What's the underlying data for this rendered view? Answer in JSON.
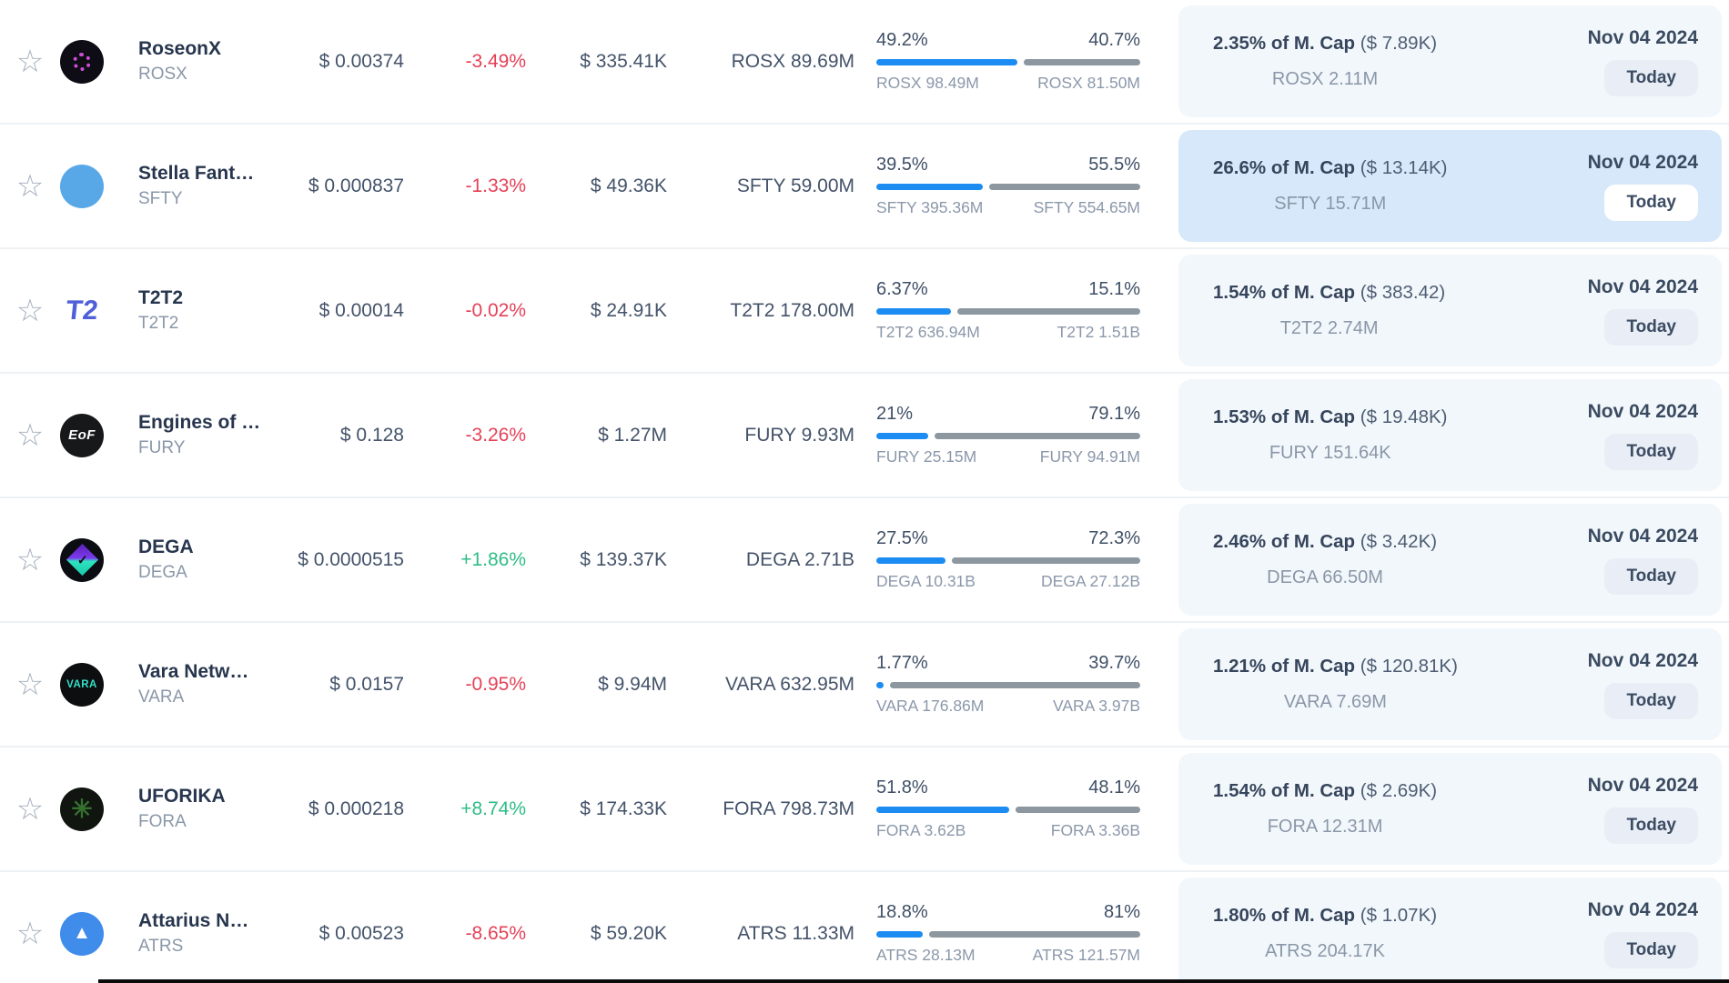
{
  "table": {
    "date_column": {
      "date": "Nov 04 2024",
      "badge": "Today"
    },
    "colors": {
      "bar_blue": "#1c8cf3",
      "bar_gray": "#8d97a0",
      "change_up": "#2ebd85",
      "change_down": "#e54157",
      "panel_bg": "#f2f7fb",
      "panel_highlight_bg": "#d6e8fa"
    }
  },
  "rows": [
    {
      "name": "RoseonX",
      "symbol": "ROSX",
      "logo": {
        "kind": "rosx",
        "bg": "#0e0c15",
        "color": "#cf4fd8",
        "text": ""
      },
      "price": "$ 0.00374",
      "change": "-3.49%",
      "change_dir": "down",
      "volume": "$ 335.41K",
      "supply": "ROSX 89.69M",
      "bar": {
        "left_pct": "49.2%",
        "right_pct": "40.7%",
        "left_value": 49.2,
        "right_value": 40.7,
        "left_label": "ROSX 98.49M",
        "right_label": "ROSX 81.50M"
      },
      "unlock": {
        "mcap_bold": "2.35% of M. Cap",
        "mcap_paren": "($ 7.89K)",
        "amount": "ROSX 2.11M"
      },
      "date": "Nov 04 2024",
      "badge": "Today",
      "highlighted": false
    },
    {
      "name": "Stella Fant…",
      "symbol": "SFTY",
      "logo": {
        "kind": "sfty",
        "bg": "#58a8e8",
        "color": "#e6ded2",
        "text": ""
      },
      "price": "$ 0.000837",
      "change": "-1.33%",
      "change_dir": "down",
      "volume": "$ 49.36K",
      "supply": "SFTY 59.00M",
      "bar": {
        "left_pct": "39.5%",
        "right_pct": "55.5%",
        "left_value": 39.5,
        "right_value": 55.5,
        "left_label": "SFTY 395.36M",
        "right_label": "SFTY 554.65M"
      },
      "unlock": {
        "mcap_bold": "26.6% of M. Cap",
        "mcap_paren": "($ 13.14K)",
        "amount": "SFTY 15.71M"
      },
      "date": "Nov 04 2024",
      "badge": "Today",
      "highlighted": true
    },
    {
      "name": "T2T2",
      "symbol": "T2T2",
      "logo": {
        "kind": "t2t2",
        "bg": "transparent",
        "color": "#4f5ed9",
        "text": "T2"
      },
      "price": "$ 0.00014",
      "change": "-0.02%",
      "change_dir": "down",
      "volume": "$ 24.91K",
      "supply": "T2T2 178.00M",
      "bar": {
        "left_pct": "6.37%",
        "right_pct": "15.1%",
        "left_value": 6.37,
        "right_value": 15.1,
        "left_label": "T2T2 636.94M",
        "right_label": "T2T2 1.51B"
      },
      "unlock": {
        "mcap_bold": "1.54% of M. Cap",
        "mcap_paren": "($ 383.42)",
        "amount": "T2T2 2.74M"
      },
      "date": "Nov 04 2024",
      "badge": "Today",
      "highlighted": false
    },
    {
      "name": "Engines of …",
      "symbol": "FURY",
      "logo": {
        "kind": "fury",
        "bg": "#17181a",
        "color": "#ffffff",
        "text": "EoF"
      },
      "price": "$ 0.128",
      "change": "-3.26%",
      "change_dir": "down",
      "volume": "$ 1.27M",
      "supply": "FURY 9.93M",
      "bar": {
        "left_pct": "21%",
        "right_pct": "79.1%",
        "left_value": 21,
        "right_value": 79.1,
        "left_label": "FURY 25.15M",
        "right_label": "FURY 94.91M"
      },
      "unlock": {
        "mcap_bold": "1.53% of M. Cap",
        "mcap_paren": "($ 19.48K)",
        "amount": "FURY 151.64K"
      },
      "date": "Nov 04 2024",
      "badge": "Today",
      "highlighted": false
    },
    {
      "name": "DEGA",
      "symbol": "DEGA",
      "logo": {
        "kind": "dega",
        "bg": "#0b0d12",
        "color": "#2fe3c0",
        "text": "✓"
      },
      "price": "$ 0.0000515",
      "change": "+1.86%",
      "change_dir": "up",
      "volume": "$ 139.37K",
      "supply": "DEGA 2.71B",
      "bar": {
        "left_pct": "27.5%",
        "right_pct": "72.3%",
        "left_value": 27.5,
        "right_value": 72.3,
        "left_label": "DEGA 10.31B",
        "right_label": "DEGA 27.12B"
      },
      "unlock": {
        "mcap_bold": "2.46% of M. Cap",
        "mcap_paren": "($ 3.42K)",
        "amount": "DEGA 66.50M"
      },
      "date": "Nov 04 2024",
      "badge": "Today",
      "highlighted": false
    },
    {
      "name": "Vara Netw…",
      "symbol": "VARA",
      "logo": {
        "kind": "vara",
        "bg": "#0c0e10",
        "color": "#35e0c8",
        "text": "VARA"
      },
      "price": "$ 0.0157",
      "change": "-0.95%",
      "change_dir": "down",
      "volume": "$ 9.94M",
      "supply": "VARA 632.95M",
      "bar": {
        "left_pct": "1.77%",
        "right_pct": "39.7%",
        "left_value": 1.77,
        "right_value": 39.7,
        "left_label": "VARA 176.86M",
        "right_label": "VARA 3.97B"
      },
      "unlock": {
        "mcap_bold": "1.21% of M. Cap",
        "mcap_paren": "($ 120.81K)",
        "amount": "VARA 7.69M"
      },
      "date": "Nov 04 2024",
      "badge": "Today",
      "highlighted": false
    },
    {
      "name": "UFORIKA",
      "symbol": "FORA",
      "logo": {
        "kind": "fora",
        "bg": "#101510",
        "color": "#35702f",
        "text": "✳"
      },
      "price": "$ 0.000218",
      "change": "+8.74%",
      "change_dir": "up",
      "volume": "$ 174.33K",
      "supply": "FORA 798.73M",
      "bar": {
        "left_pct": "51.8%",
        "right_pct": "48.1%",
        "left_value": 51.8,
        "right_value": 48.1,
        "left_label": "FORA 3.62B",
        "right_label": "FORA 3.36B"
      },
      "unlock": {
        "mcap_bold": "1.54% of M. Cap",
        "mcap_paren": "($ 2.69K)",
        "amount": "FORA 12.31M"
      },
      "date": "Nov 04 2024",
      "badge": "Today",
      "highlighted": false
    },
    {
      "name": "Attarius N…",
      "symbol": "ATRS",
      "logo": {
        "kind": "atrs",
        "bg": "#3f8ceb",
        "color": "#ffffff",
        "text": "▲"
      },
      "price": "$ 0.00523",
      "change": "-8.65%",
      "change_dir": "down",
      "volume": "$ 59.20K",
      "supply": "ATRS 11.33M",
      "bar": {
        "left_pct": "18.8%",
        "right_pct": "81%",
        "left_value": 18.8,
        "right_value": 81,
        "left_label": "ATRS 28.13M",
        "right_label": "ATRS 121.57M"
      },
      "unlock": {
        "mcap_bold": "1.80% of M. Cap",
        "mcap_paren": "($ 1.07K)",
        "amount": "ATRS 204.17K"
      },
      "date": "Nov 04 2024",
      "badge": "Today",
      "highlighted": false
    }
  ]
}
